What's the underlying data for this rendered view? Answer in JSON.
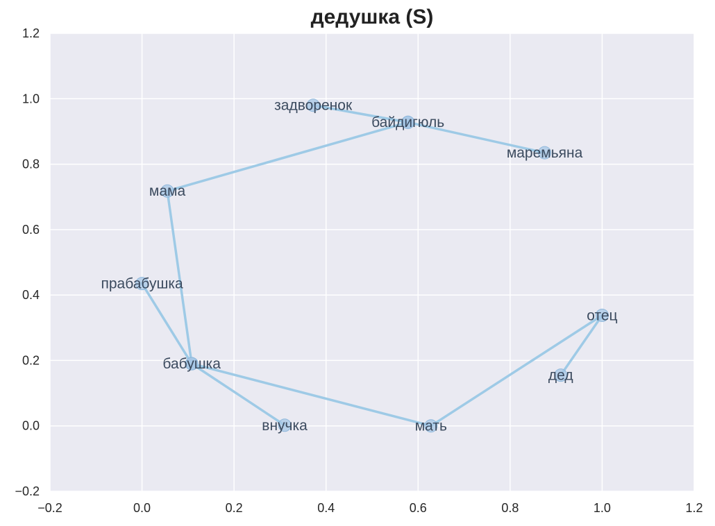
{
  "chart_data": {
    "type": "line",
    "title": "дедушка (S)",
    "xlabel": "",
    "ylabel": "",
    "xlim": [
      -0.2,
      1.2
    ],
    "ylim": [
      -0.2,
      1.2
    ],
    "xticks": [
      -0.2,
      0.0,
      0.2,
      0.4,
      0.6,
      0.8,
      1.0,
      1.2
    ],
    "yticks": [
      -0.2,
      0.0,
      0.2,
      0.4,
      0.6,
      0.8,
      1.0,
      1.2
    ],
    "xtick_labels": [
      "−0.2",
      "0.0",
      "0.2",
      "0.4",
      "0.6",
      "0.8",
      "1.0",
      "1.2"
    ],
    "ytick_labels": [
      "−0.2",
      "0.0",
      "0.2",
      "0.4",
      "0.6",
      "0.8",
      "1.0",
      "1.2"
    ],
    "grid": true,
    "line_color": "#9ecae6",
    "marker_color": "#a7c7e6",
    "background_color": "#eaeaf2",
    "points": [
      {
        "label": "дед",
        "x": 0.91,
        "y": 0.155
      },
      {
        "label": "отец",
        "x": 1.0,
        "y": 0.338
      },
      {
        "label": "мать",
        "x": 0.628,
        "y": 0.0
      },
      {
        "label": "бабушка",
        "x": 0.108,
        "y": 0.19
      },
      {
        "label": "внучка",
        "x": 0.31,
        "y": 0.002
      },
      {
        "label": "бабушка",
        "x": 0.108,
        "y": 0.19
      },
      {
        "label": "прабабушка",
        "x": 0.0,
        "y": 0.435
      },
      {
        "label": "бабушка",
        "x": 0.108,
        "y": 0.19
      },
      {
        "label": "мама",
        "x": 0.055,
        "y": 0.718
      },
      {
        "label": "байдигюль",
        "x": 0.578,
        "y": 0.928
      },
      {
        "label": "задворенок",
        "x": 0.372,
        "y": 0.98
      },
      {
        "label": "байдигюль",
        "x": 0.578,
        "y": 0.928
      },
      {
        "label": "маремьяна",
        "x": 0.875,
        "y": 0.835
      }
    ]
  }
}
